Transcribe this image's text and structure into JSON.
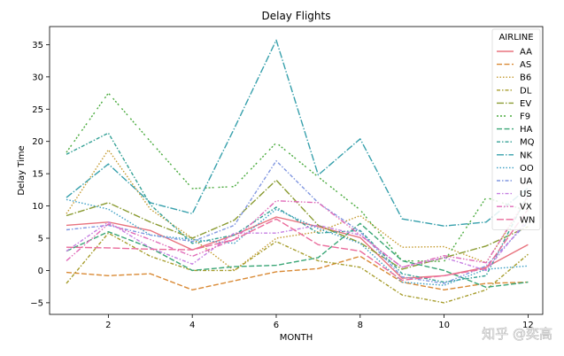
{
  "watermark": "知乎 @奕高",
  "chart_data": {
    "type": "line",
    "title": "Delay Flights",
    "xlabel": "MONTH",
    "ylabel": "Delay Time",
    "xlim": [
      0.6,
      12.35
    ],
    "ylim": [
      -6.8,
      37.8
    ],
    "xticks": [
      2,
      4,
      6,
      8,
      10,
      12
    ],
    "yticks": [
      -5,
      0,
      5,
      10,
      15,
      20,
      25,
      30,
      35
    ],
    "legend": {
      "title": "AIRLINE",
      "position": "top-right"
    },
    "x": [
      1,
      2,
      3,
      4,
      5,
      6,
      7,
      8,
      9,
      10,
      11,
      12
    ],
    "series": [
      {
        "name": "AA",
        "color": "#e8737e",
        "dash": "",
        "values": [
          7.0,
          7.5,
          6.2,
          3.2,
          5.5,
          8.3,
          6.8,
          5.1,
          -1.2,
          -0.8,
          0.5,
          4.0
        ]
      },
      {
        "name": "AS",
        "color": "#d98a35",
        "dash": "6,2.5",
        "values": [
          -0.3,
          -0.8,
          -0.5,
          -3.0,
          -1.6,
          -0.2,
          0.3,
          2.2,
          -1.8,
          -3.0,
          -2.0,
          -1.8
        ]
      },
      {
        "name": "B6",
        "color": "#c49a2e",
        "dash": "1.5,2",
        "values": [
          8.8,
          18.7,
          9.5,
          5.0,
          0.0,
          5.0,
          6.0,
          8.5,
          3.6,
          3.7,
          1.2,
          11.3
        ]
      },
      {
        "name": "DL",
        "color": "#a79d2d",
        "dash": "4,2,1.5,2",
        "values": [
          -2.0,
          5.8,
          2.2,
          0.0,
          0.0,
          4.5,
          1.5,
          0.5,
          -3.8,
          -5.0,
          -3.0,
          2.5
        ]
      },
      {
        "name": "EV",
        "color": "#8a9b32",
        "dash": "8,2,1.5,2",
        "values": [
          8.5,
          10.5,
          7.5,
          5.0,
          7.8,
          14.0,
          7.0,
          4.3,
          0.2,
          2.0,
          3.8,
          6.8
        ]
      },
      {
        "name": "F9",
        "color": "#4bab3f",
        "dash": "2,2,2,2,2,5",
        "values": [
          18.3,
          27.5,
          20.0,
          12.7,
          13.0,
          19.8,
          14.5,
          9.4,
          1.5,
          1.4,
          11.3,
          9.2
        ]
      },
      {
        "name": "HA",
        "color": "#3aa676",
        "dash": "6,2.5",
        "values": [
          3.0,
          6.0,
          3.5,
          0.0,
          0.6,
          0.8,
          2.0,
          7.3,
          1.5,
          0.0,
          -2.6,
          -1.8
        ]
      },
      {
        "name": "MQ",
        "color": "#34a196",
        "dash": "4,2,1.5,2",
        "values": [
          18.0,
          21.3,
          10.2,
          4.2,
          5.5,
          9.8,
          5.8,
          6.2,
          -0.5,
          -1.8,
          -0.8,
          11.8
        ]
      },
      {
        "name": "NK",
        "color": "#37a0ac",
        "dash": "8,2,1.5,2",
        "values": [
          11.3,
          16.5,
          10.5,
          8.8,
          22.0,
          35.7,
          14.8,
          20.4,
          8.0,
          6.9,
          7.5,
          12.8
        ]
      },
      {
        "name": "OO",
        "color": "#3d9fc4",
        "dash": "1.5,2",
        "values": [
          11.0,
          9.5,
          5.5,
          4.8,
          4.2,
          9.5,
          6.5,
          4.2,
          -1.8,
          -2.3,
          0.2,
          0.7
        ]
      },
      {
        "name": "UA",
        "color": "#8197e0",
        "dash": "4,2,1.5,2",
        "values": [
          6.3,
          7.0,
          5.5,
          4.5,
          7.0,
          17.0,
          10.5,
          6.0,
          -1.0,
          -2.0,
          0.7,
          7.5
        ]
      },
      {
        "name": "US",
        "color": "#c67fe2",
        "dash": "4,2,1.5,2",
        "values": [
          3.0,
          7.5,
          3.5,
          1.0,
          5.8,
          5.8,
          7.0,
          5.5,
          0.5,
          2.0,
          0.0,
          8.0
        ]
      },
      {
        "name": "VX",
        "color": "#e06ab8",
        "dash": "6,2,1.5,2,1.5,2",
        "values": [
          1.5,
          7.2,
          4.8,
          2.2,
          4.8,
          10.8,
          10.5,
          5.5,
          0.5,
          2.3,
          1.2,
          11.5
        ]
      },
      {
        "name": "WN",
        "color": "#ea6b9b",
        "dash": "8,2.5",
        "values": [
          3.6,
          3.5,
          3.3,
          3.2,
          4.8,
          8.0,
          4.0,
          3.0,
          -1.5,
          -0.8,
          0.3,
          9.5
        ]
      }
    ]
  }
}
